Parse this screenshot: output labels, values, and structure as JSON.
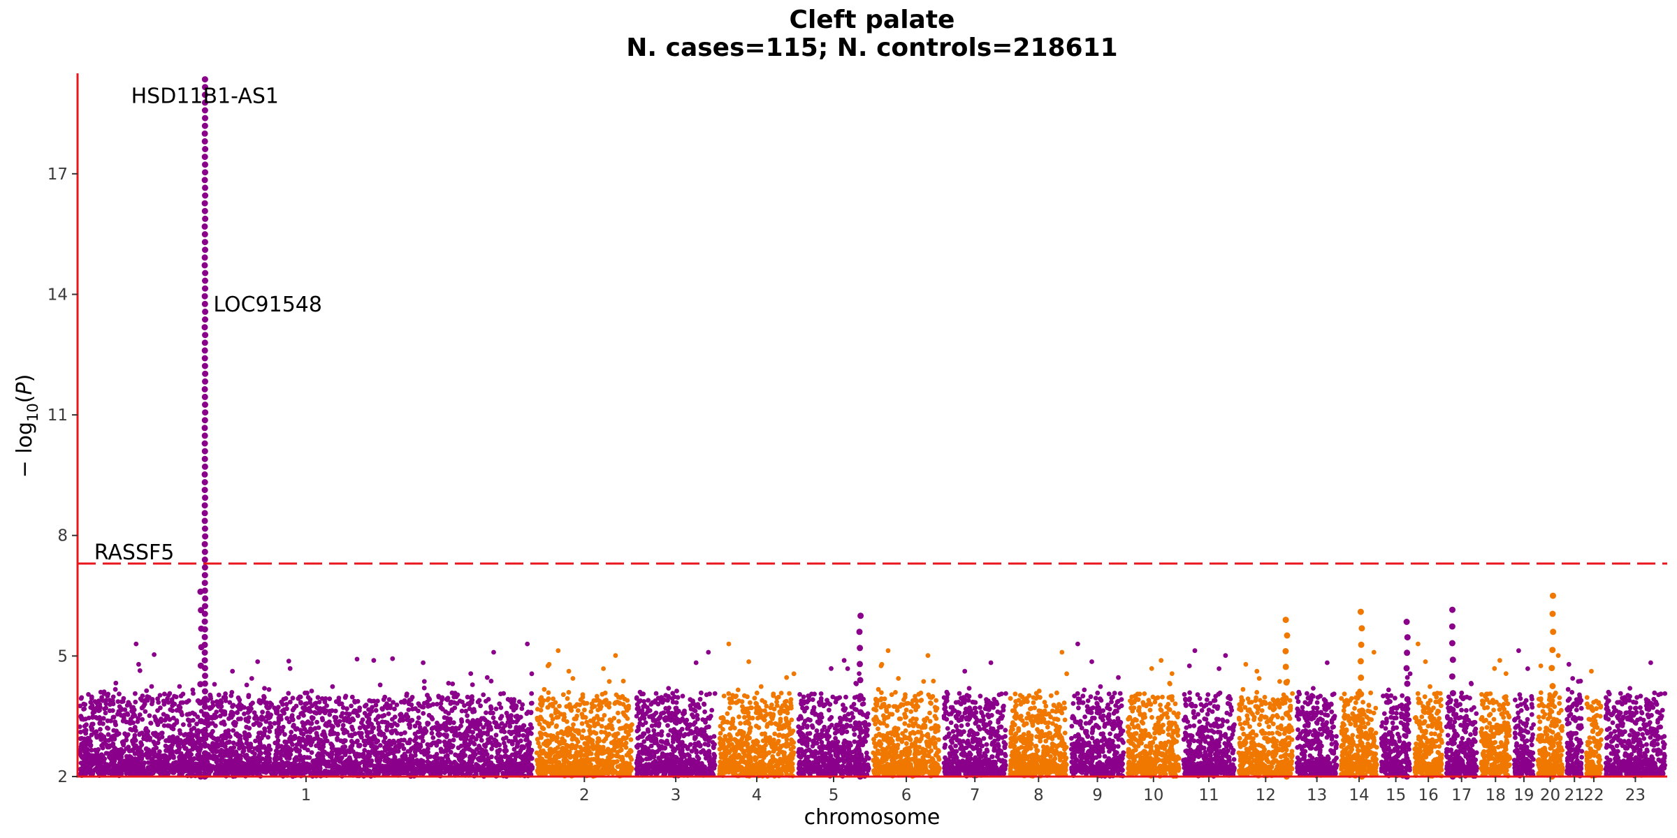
{
  "chart_data": {
    "type": "scatter",
    "subtype": "manhattan",
    "title": "Cleft palate",
    "subtitle": "N. cases=115; N. controls=218611",
    "xlabel": "chromosome",
    "ylabel": "−log10(P)",
    "ylim": [
      2,
      19.5
    ],
    "y_ticks": [
      2,
      5,
      8,
      11,
      14,
      17
    ],
    "grid": false,
    "significance_line": {
      "value": 7.3,
      "color": "#e8161b",
      "style": "dashed"
    },
    "series_colors": [
      "#8a008a",
      "#f07800"
    ],
    "chromosomes": [
      {
        "label": "1",
        "start": 0,
        "end": 1650
      },
      {
        "label": "2",
        "start": 1650,
        "end": 2010
      },
      {
        "label": "3",
        "start": 2010,
        "end": 2310
      },
      {
        "label": "4",
        "start": 2310,
        "end": 2595
      },
      {
        "label": "5",
        "start": 2595,
        "end": 2865
      },
      {
        "label": "6",
        "start": 2865,
        "end": 3120
      },
      {
        "label": "7",
        "start": 3120,
        "end": 3360
      },
      {
        "label": "8",
        "start": 3360,
        "end": 3580
      },
      {
        "label": "9",
        "start": 3580,
        "end": 3785
      },
      {
        "label": "10",
        "start": 3785,
        "end": 3985
      },
      {
        "label": "11",
        "start": 3985,
        "end": 4185
      },
      {
        "label": "12",
        "start": 4185,
        "end": 4395
      },
      {
        "label": "13",
        "start": 4395,
        "end": 4555
      },
      {
        "label": "14",
        "start": 4555,
        "end": 4700
      },
      {
        "label": "15",
        "start": 4700,
        "end": 4820
      },
      {
        "label": "16",
        "start": 4820,
        "end": 4935
      },
      {
        "label": "17",
        "start": 4935,
        "end": 5060
      },
      {
        "label": "18",
        "start": 5060,
        "end": 5180
      },
      {
        "label": "19",
        "start": 5180,
        "end": 5265
      },
      {
        "label": "20",
        "start": 5265,
        "end": 5370
      },
      {
        "label": "21",
        "start": 5370,
        "end": 5440
      },
      {
        "label": "22",
        "start": 5440,
        "end": 5510
      },
      {
        "label": "23",
        "start": 5510,
        "end": 5740
      }
    ],
    "peaks": [
      {
        "chromosome": "1",
        "pos": 460,
        "y": 19.35
      },
      {
        "chromosome": "1",
        "pos": 445,
        "y": 6.6
      },
      {
        "chromosome": "5",
        "pos": 230,
        "y": 6.0
      },
      {
        "chromosome": "14",
        "pos": 80,
        "y": 6.1
      },
      {
        "chromosome": "17",
        "pos": 30,
        "y": 6.15
      },
      {
        "chromosome": "20",
        "pos": 60,
        "y": 6.5
      },
      {
        "chromosome": "12",
        "pos": 180,
        "y": 5.9
      },
      {
        "chromosome": "15",
        "pos": 100,
        "y": 5.85
      }
    ],
    "annotations": [
      {
        "text": "HSD11B1-AS1",
        "chromosome": "1",
        "pos": 460,
        "y": 19.35
      },
      {
        "text": "LOC91548",
        "chromosome": "1",
        "pos": 460,
        "y": 13.4
      },
      {
        "text": "RASSF5",
        "chromosome": "1",
        "pos": 60,
        "y": 7.3
      }
    ]
  }
}
